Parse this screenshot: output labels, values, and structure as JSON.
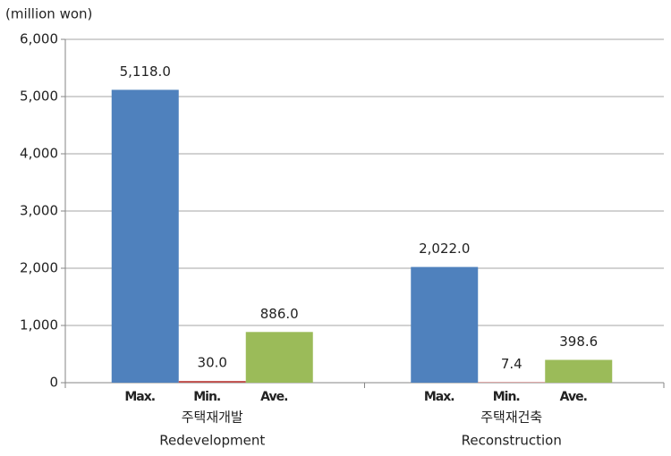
{
  "chart_data": {
    "type": "bar",
    "ylabel": "(million won)",
    "categories": [
      "주택재개발",
      "주택재건축"
    ],
    "category_subtitles": [
      "Redevelopment",
      "Reconstruction"
    ],
    "series": [
      {
        "name": "Max.",
        "color": "#4f81bd",
        "values": [
          5118.0,
          2022.0
        ],
        "value_labels": [
          "5,118.0",
          "2,022.0"
        ]
      },
      {
        "name": "Min.",
        "color": "#c0504d",
        "values": [
          30.0,
          7.4
        ],
        "value_labels": [
          "30.0",
          "7.4"
        ]
      },
      {
        "name": "Ave.",
        "color": "#9bbb59",
        "values": [
          886.0,
          398.6
        ],
        "value_labels": [
          "886.0",
          "398.6"
        ]
      }
    ],
    "ylim": [
      0,
      6000
    ],
    "yticks": [
      0,
      {
        "value": 1000,
        "label": "1,000"
      },
      {
        "value": 2000,
        "label": "2,000"
      },
      {
        "value": 3000,
        "label": "3,000"
      },
      {
        "value": 4000,
        "label": "4,000"
      },
      {
        "value": 5000,
        "label": "5,000"
      },
      {
        "value": 6000,
        "label": "6,000"
      }
    ],
    "grid": true
  }
}
